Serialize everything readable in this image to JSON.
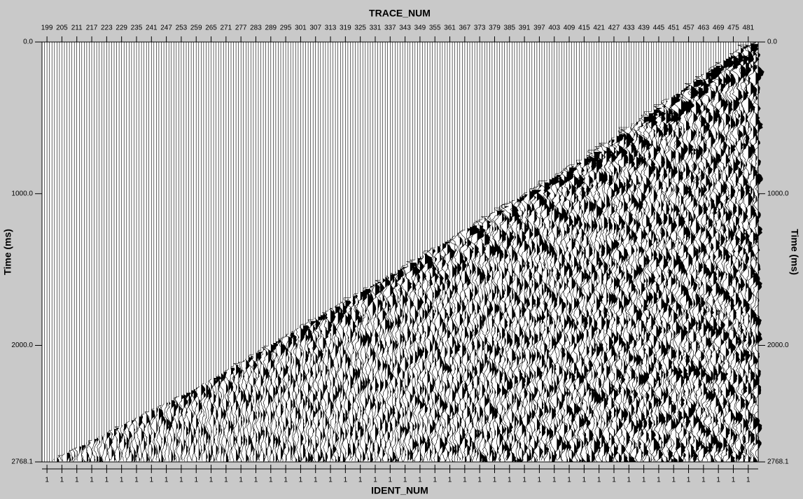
{
  "chart_data": {
    "type": "seismic-gather",
    "top_axis_label": "TRACE_NUM",
    "bottom_axis_label": "IDENT_NUM",
    "ylabel": "Time (ms)",
    "xlim": [
      197,
      485
    ],
    "xticks": [
      199,
      205,
      211,
      217,
      223,
      229,
      235,
      241,
      247,
      253,
      259,
      265,
      271,
      277,
      283,
      289,
      295,
      301,
      307,
      313,
      319,
      325,
      331,
      337,
      343,
      349,
      355,
      361,
      367,
      373,
      379,
      385,
      391,
      397,
      403,
      409,
      415,
      421,
      427,
      433,
      439,
      445,
      451,
      457,
      463,
      469,
      475,
      481
    ],
    "ident_num": [
      1,
      1,
      1,
      1,
      1,
      1,
      1,
      1,
      1,
      1,
      1,
      1,
      1,
      1,
      1,
      1,
      1,
      1,
      1,
      1,
      1,
      1,
      1,
      1,
      1,
      1,
      1,
      1,
      1,
      1,
      1,
      1,
      1,
      1,
      1,
      1,
      1,
      1,
      1,
      1,
      1,
      1,
      1,
      1,
      1,
      1,
      1,
      1
    ],
    "ylim": [
      0,
      2768.1
    ],
    "yticks": [
      {
        "value": 0,
        "label": "0.0"
      },
      {
        "value": 1000,
        "label": "1000.0"
      },
      {
        "value": 2000,
        "label": "2000.0"
      },
      {
        "value": 2768.1,
        "label": "2768.1"
      }
    ],
    "y_inverted": true,
    "color": "#000000"
  }
}
